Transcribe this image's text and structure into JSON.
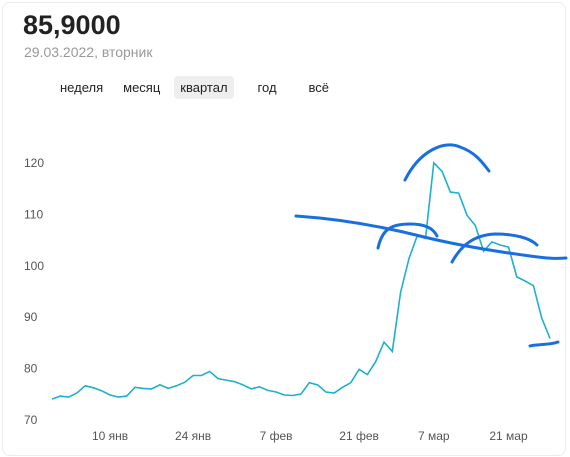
{
  "header": {
    "value": "85,9000",
    "date": "29.03.2022, вторник"
  },
  "tabs": [
    "неделя",
    "месяц",
    "квартал",
    "год",
    "всё"
  ],
  "chart_data": {
    "type": "line",
    "categories": [
      null,
      null,
      null,
      null,
      null,
      null,
      null,
      "10 янв",
      null,
      null,
      null,
      null,
      null,
      null,
      null,
      null,
      null,
      "24 янв",
      null,
      null,
      null,
      null,
      null,
      null,
      null,
      null,
      null,
      "7 фев",
      null,
      null,
      null,
      null,
      null,
      null,
      null,
      null,
      null,
      "21 фев",
      null,
      null,
      null,
      null,
      null,
      null,
      null,
      null,
      "7 мар",
      null,
      null,
      null,
      null,
      null,
      null,
      null,
      null,
      "21 мар",
      null,
      null,
      null,
      null,
      null
    ],
    "values": [
      74.2,
      74.8,
      74.6,
      75.4,
      76.8,
      76.4,
      75.8,
      75.0,
      74.6,
      74.8,
      76.5,
      76.3,
      76.2,
      77.0,
      76.3,
      76.8,
      77.5,
      78.8,
      78.8,
      79.6,
      78.2,
      77.9,
      77.6,
      77.0,
      76.2,
      76.6,
      75.9,
      75.6,
      75.0,
      74.9,
      75.2,
      77.4,
      77.0,
      75.6,
      75.4,
      76.5,
      77.4,
      80.0,
      79.0,
      81.5,
      85.3,
      83.5,
      95,
      101.5,
      106,
      105.5,
      120.2,
      118.5,
      114.5,
      114.3,
      110,
      108,
      103,
      104.8,
      104.2,
      103.8,
      98,
      97.2,
      96.3,
      90,
      86
    ],
    "color": "#1fb0cc",
    "ylim": [
      68,
      126
    ],
    "yticks": [
      70,
      80,
      90,
      100,
      110,
      120
    ],
    "grid": false
  }
}
